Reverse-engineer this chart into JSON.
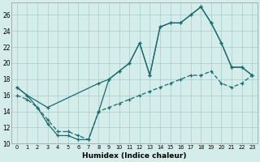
{
  "xlabel": "Humidex (Indice chaleur)",
  "bg_color": "#d4ecea",
  "grid_color": "#a8cccc",
  "line_color": "#1a6b6b",
  "xlim": [
    -0.5,
    23.5
  ],
  "ylim": [
    10,
    27.5
  ],
  "xticks": [
    0,
    1,
    2,
    3,
    4,
    5,
    6,
    7,
    8,
    9,
    10,
    11,
    12,
    13,
    14,
    15,
    16,
    17,
    18,
    19,
    20,
    21,
    22,
    23
  ],
  "yticks": [
    10,
    12,
    14,
    16,
    18,
    20,
    22,
    24,
    26
  ],
  "line1_x": [
    0,
    1,
    2,
    3,
    4,
    5,
    6,
    7,
    8,
    9,
    10,
    11,
    12,
    13,
    14,
    15,
    16,
    17,
    18,
    19,
    20,
    21,
    22,
    23
  ],
  "line1_y": [
    17,
    16,
    14.5,
    12.5,
    11,
    11,
    10.5,
    10.5,
    14,
    18,
    19,
    20,
    22.5,
    18.5,
    24.5,
    25,
    25,
    26,
    27,
    25,
    22.5,
    19.5,
    19.5,
    18.5
  ],
  "line2_x": [
    0,
    1,
    3,
    8,
    9,
    10,
    11,
    12,
    13,
    14,
    15,
    16,
    17,
    18,
    19,
    20,
    21,
    22,
    23
  ],
  "line2_y": [
    17,
    16,
    14.5,
    17.5,
    18,
    19,
    20,
    22.5,
    18.5,
    24.5,
    25,
    25,
    26,
    27,
    25,
    22.5,
    19.5,
    19.5,
    18.5
  ],
  "line3_x": [
    0,
    1,
    2,
    3,
    4,
    5,
    6,
    7,
    8,
    9,
    10,
    11,
    12,
    13,
    14,
    15,
    16,
    17,
    18,
    19,
    20,
    21,
    22,
    23
  ],
  "line3_y": [
    16,
    15.5,
    14.5,
    13,
    11.5,
    11.5,
    11,
    10.5,
    14,
    14.5,
    15,
    15.5,
    16,
    16.5,
    17,
    17.5,
    18,
    18.5,
    18.5,
    19,
    17.5,
    17,
    17.5,
    18.5
  ]
}
